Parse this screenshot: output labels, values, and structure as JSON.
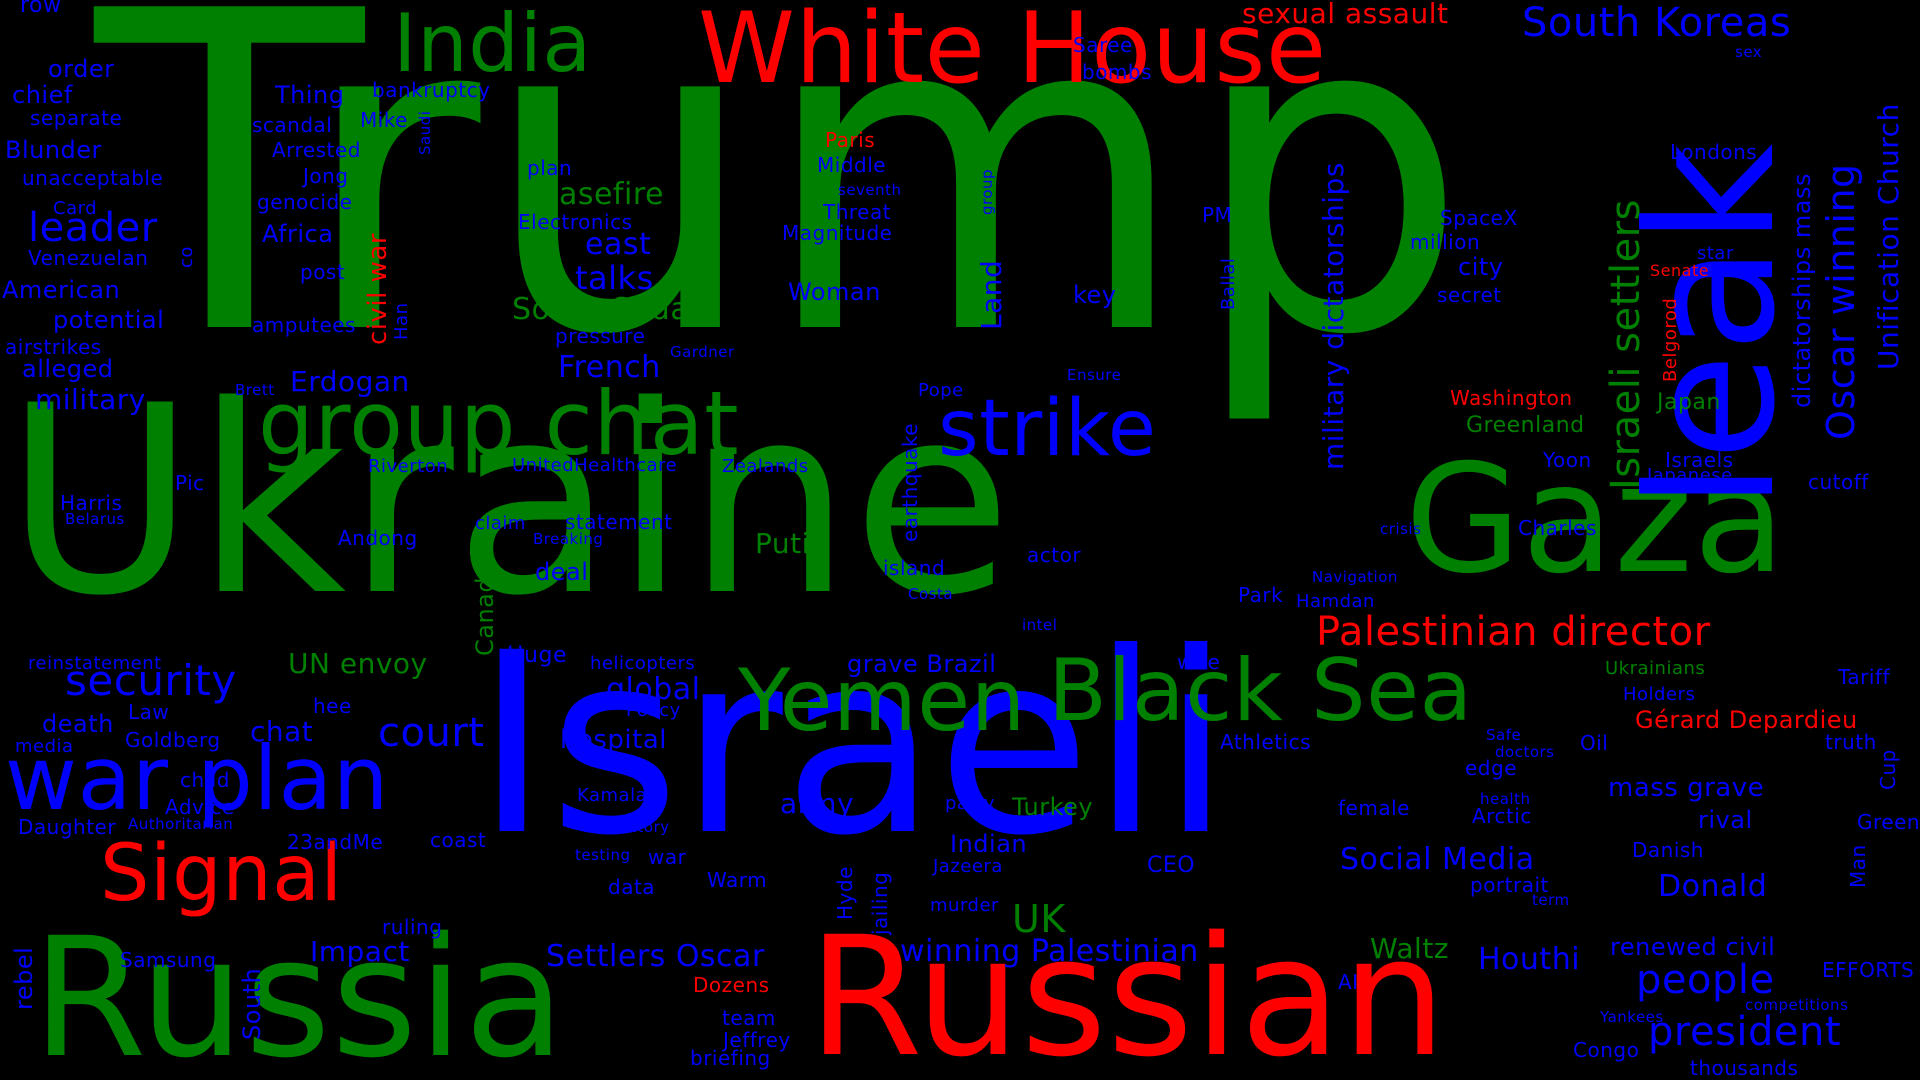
{
  "background": "#000000",
  "palette": {
    "green": "#008000",
    "blue": "#0000ff",
    "red": "#ff0000"
  },
  "words": [
    {
      "text": "Trump",
      "color": "green"
    },
    {
      "text": "Ukraine",
      "color": "green"
    },
    {
      "text": "Israeli",
      "color": "blue"
    },
    {
      "text": "Russian",
      "color": "red"
    },
    {
      "text": "Russia",
      "color": "green"
    },
    {
      "text": "Gaza",
      "color": "green"
    },
    {
      "text": "leak",
      "color": "blue"
    },
    {
      "text": "White House",
      "color": "red"
    },
    {
      "text": "group chat",
      "color": "green"
    },
    {
      "text": "war plan",
      "color": "blue"
    },
    {
      "text": "Black Sea",
      "color": "green"
    },
    {
      "text": "Yemen",
      "color": "green"
    },
    {
      "text": "India",
      "color": "green"
    },
    {
      "text": "Signal",
      "color": "red"
    },
    {
      "text": "strike",
      "color": "blue"
    },
    {
      "text": "South Koreas",
      "color": "blue"
    },
    {
      "text": "Palestinian director",
      "color": "red"
    },
    {
      "text": "security",
      "color": "blue"
    },
    {
      "text": "leader",
      "color": "blue"
    },
    {
      "text": "court",
      "color": "blue"
    },
    {
      "text": "president",
      "color": "blue"
    },
    {
      "text": "people",
      "color": "blue"
    },
    {
      "text": "Israeli settlers",
      "color": "green"
    },
    {
      "text": "Oscar winning",
      "color": "blue"
    },
    {
      "text": "Unification Church",
      "color": "blue"
    },
    {
      "text": "military dictatorships",
      "color": "blue"
    },
    {
      "text": "dictatorships mass",
      "color": "blue"
    },
    {
      "text": "sexual assault",
      "color": "red"
    },
    {
      "text": "ceasefire",
      "color": "green"
    },
    {
      "text": "talks",
      "color": "blue"
    },
    {
      "text": "east",
      "color": "blue"
    },
    {
      "text": "South Sudan",
      "color": "green"
    },
    {
      "text": "French",
      "color": "blue"
    },
    {
      "text": "Erdogan",
      "color": "blue"
    },
    {
      "text": "military",
      "color": "blue"
    },
    {
      "text": "Putin",
      "color": "green"
    },
    {
      "text": "UN envoy",
      "color": "green"
    },
    {
      "text": "global",
      "color": "blue"
    },
    {
      "text": "hospital",
      "color": "blue"
    },
    {
      "text": "chat",
      "color": "blue"
    },
    {
      "text": "Settlers Oscar",
      "color": "blue"
    },
    {
      "text": "winning Palestinian",
      "color": "blue"
    },
    {
      "text": "Waltz",
      "color": "green"
    },
    {
      "text": "Houthi",
      "color": "blue"
    },
    {
      "text": "Social Media",
      "color": "blue"
    },
    {
      "text": "Donald",
      "color": "blue"
    },
    {
      "text": "mass grave",
      "color": "blue"
    },
    {
      "text": "UK",
      "color": "green"
    },
    {
      "text": "army",
      "color": "blue"
    },
    {
      "text": "Turkey",
      "color": "green"
    },
    {
      "text": "Indian",
      "color": "blue"
    },
    {
      "text": "grave Brazil",
      "color": "blue"
    },
    {
      "text": "Impact",
      "color": "blue"
    },
    {
      "text": "Gérard Depardieu",
      "color": "red"
    },
    {
      "text": "Washington",
      "color": "red"
    },
    {
      "text": "Greenland",
      "color": "green"
    },
    {
      "text": "Japan",
      "color": "green"
    },
    {
      "text": "Paris",
      "color": "red"
    },
    {
      "text": "Dozens",
      "color": "red"
    },
    {
      "text": "civil war",
      "color": "red"
    },
    {
      "text": "Senate",
      "color": "red"
    },
    {
      "text": "Belgorod",
      "color": "red"
    },
    {
      "text": "Land",
      "color": "blue"
    },
    {
      "text": "key",
      "color": "blue"
    },
    {
      "text": "Woman",
      "color": "blue"
    },
    {
      "text": "Africa",
      "color": "blue"
    },
    {
      "text": "Thing",
      "color": "blue"
    },
    {
      "text": "Blunder",
      "color": "blue"
    },
    {
      "text": "American",
      "color": "blue"
    },
    {
      "text": "potential",
      "color": "blue"
    },
    {
      "text": "alleged",
      "color": "blue"
    },
    {
      "text": "airstrikes",
      "color": "blue"
    },
    {
      "text": "chief",
      "color": "blue"
    },
    {
      "text": "order",
      "color": "blue"
    },
    {
      "text": "separate",
      "color": "blue"
    },
    {
      "text": "unacceptable",
      "color": "blue"
    },
    {
      "text": "Card",
      "color": "blue"
    },
    {
      "text": "Venezuelan",
      "color": "blue"
    },
    {
      "text": "row",
      "color": "blue"
    },
    {
      "text": "bankruptcy",
      "color": "blue"
    },
    {
      "text": "scandal",
      "color": "blue"
    },
    {
      "text": "Mike",
      "color": "blue"
    },
    {
      "text": "Arrested",
      "color": "blue"
    },
    {
      "text": "Jong",
      "color": "blue"
    },
    {
      "text": "genocide",
      "color": "blue"
    },
    {
      "text": "post",
      "color": "blue"
    },
    {
      "text": "amputees",
      "color": "blue"
    },
    {
      "text": "Saree",
      "color": "blue"
    },
    {
      "text": "bombs",
      "color": "blue"
    },
    {
      "text": "plan",
      "color": "blue"
    },
    {
      "text": "Middle",
      "color": "blue"
    },
    {
      "text": "Electronics",
      "color": "blue"
    },
    {
      "text": "Threat",
      "color": "blue"
    },
    {
      "text": "Magnitude",
      "color": "blue"
    },
    {
      "text": "seventh",
      "color": "blue"
    },
    {
      "text": "pressure",
      "color": "blue"
    },
    {
      "text": "Gardner",
      "color": "blue"
    },
    {
      "text": "SpaceX",
      "color": "blue"
    },
    {
      "text": "million",
      "color": "blue"
    },
    {
      "text": "city",
      "color": "blue"
    },
    {
      "text": "secret",
      "color": "blue"
    },
    {
      "text": "PM",
      "color": "blue"
    },
    {
      "text": "Londons",
      "color": "blue"
    },
    {
      "text": "star",
      "color": "blue"
    },
    {
      "text": "Pope",
      "color": "blue"
    },
    {
      "text": "Ensure",
      "color": "blue"
    },
    {
      "text": "Brett",
      "color": "blue"
    },
    {
      "text": "Riverton",
      "color": "blue"
    },
    {
      "text": "UnitedHealthcare",
      "color": "blue"
    },
    {
      "text": "Zealands",
      "color": "blue"
    },
    {
      "text": "Pic",
      "color": "blue"
    },
    {
      "text": "Harris",
      "color": "blue"
    },
    {
      "text": "Belarus",
      "color": "blue"
    },
    {
      "text": "Andong",
      "color": "blue"
    },
    {
      "text": "claim",
      "color": "blue"
    },
    {
      "text": "statement",
      "color": "blue"
    },
    {
      "text": "Breaking",
      "color": "blue"
    },
    {
      "text": "deal",
      "color": "blue"
    },
    {
      "text": "Canada",
      "color": "green"
    },
    {
      "text": "island",
      "color": "blue"
    },
    {
      "text": "Costa",
      "color": "blue"
    },
    {
      "text": "actor",
      "color": "blue"
    },
    {
      "text": "intel",
      "color": "blue"
    },
    {
      "text": "Park",
      "color": "blue"
    },
    {
      "text": "Hamdan",
      "color": "blue"
    },
    {
      "text": "Navigation",
      "color": "blue"
    },
    {
      "text": "crisis",
      "color": "blue"
    },
    {
      "text": "Charles",
      "color": "blue"
    },
    {
      "text": "Yoon",
      "color": "blue"
    },
    {
      "text": "Israels",
      "color": "blue"
    },
    {
      "text": "Japanese",
      "color": "blue"
    },
    {
      "text": "cutoff",
      "color": "blue"
    },
    {
      "text": "Tariff",
      "color": "blue"
    },
    {
      "text": "Ukrainians",
      "color": "green"
    },
    {
      "text": "Holders",
      "color": "blue"
    },
    {
      "text": "Oil",
      "color": "blue"
    },
    {
      "text": "truth",
      "color": "blue"
    },
    {
      "text": "Safe",
      "color": "blue"
    },
    {
      "text": "doctors",
      "color": "blue"
    },
    {
      "text": "edge",
      "color": "blue"
    },
    {
      "text": "health",
      "color": "blue"
    },
    {
      "text": "Arctic",
      "color": "blue"
    },
    {
      "text": "rival",
      "color": "blue"
    },
    {
      "text": "Green",
      "color": "blue"
    },
    {
      "text": "Cup",
      "color": "blue"
    },
    {
      "text": "Danish",
      "color": "blue"
    },
    {
      "text": "Man",
      "color": "blue"
    },
    {
      "text": "portrait",
      "color": "blue"
    },
    {
      "text": "term",
      "color": "blue"
    },
    {
      "text": "Athletics",
      "color": "blue"
    },
    {
      "text": "female",
      "color": "blue"
    },
    {
      "text": "wife",
      "color": "blue"
    },
    {
      "text": "renewed civil",
      "color": "blue"
    },
    {
      "text": "EFFORTS",
      "color": "blue"
    },
    {
      "text": "competitions",
      "color": "blue"
    },
    {
      "text": "Yankees",
      "color": "blue"
    },
    {
      "text": "Congo",
      "color": "blue"
    },
    {
      "text": "thousands",
      "color": "blue"
    },
    {
      "text": "AI",
      "color": "blue"
    },
    {
      "text": "reinstatement",
      "color": "blue"
    },
    {
      "text": "death",
      "color": "blue"
    },
    {
      "text": "Law",
      "color": "blue"
    },
    {
      "text": "hee",
      "color": "blue"
    },
    {
      "text": "media",
      "color": "blue"
    },
    {
      "text": "Goldberg",
      "color": "blue"
    },
    {
      "text": "child",
      "color": "blue"
    },
    {
      "text": "Advice",
      "color": "blue"
    },
    {
      "text": "Daughter",
      "color": "blue"
    },
    {
      "text": "Authoritarian",
      "color": "blue"
    },
    {
      "text": "23andMe",
      "color": "blue"
    },
    {
      "text": "coast",
      "color": "blue"
    },
    {
      "text": "ruling",
      "color": "blue"
    },
    {
      "text": "Samsung",
      "color": "blue"
    },
    {
      "text": "rebel",
      "color": "blue"
    },
    {
      "text": "South",
      "color": "blue"
    },
    {
      "text": "Huge",
      "color": "blue"
    },
    {
      "text": "helicopters",
      "color": "blue"
    },
    {
      "text": "Policy",
      "color": "blue"
    },
    {
      "text": "Kamala",
      "color": "blue"
    },
    {
      "text": "mandatory",
      "color": "blue"
    },
    {
      "text": "testing",
      "color": "blue"
    },
    {
      "text": "war",
      "color": "blue"
    },
    {
      "text": "data",
      "color": "blue"
    },
    {
      "text": "Warm",
      "color": "blue"
    },
    {
      "text": "team",
      "color": "blue"
    },
    {
      "text": "Jeffrey",
      "color": "blue"
    },
    {
      "text": "briefing",
      "color": "blue"
    },
    {
      "text": "party",
      "color": "blue"
    },
    {
      "text": "Jazeera",
      "color": "blue"
    },
    {
      "text": "murder",
      "color": "blue"
    },
    {
      "text": "CEO",
      "color": "blue"
    },
    {
      "text": "Hyde",
      "color": "blue"
    },
    {
      "text": "jailing",
      "color": "blue"
    },
    {
      "text": "earthquake",
      "color": "blue"
    },
    {
      "text": "Ballal",
      "color": "blue"
    },
    {
      "text": "group",
      "color": "blue"
    },
    {
      "text": "Saudi",
      "color": "blue"
    },
    {
      "text": "Han",
      "color": "blue"
    },
    {
      "text": "co",
      "color": "blue"
    },
    {
      "text": "sex",
      "color": "blue"
    }
  ]
}
